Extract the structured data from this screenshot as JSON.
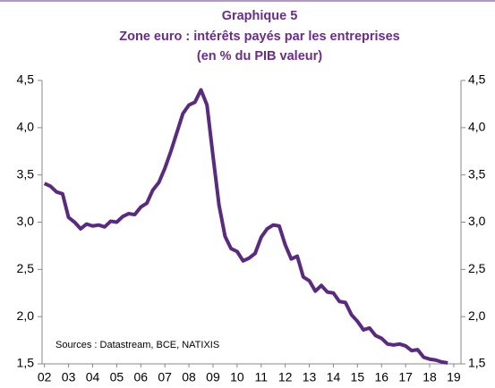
{
  "chart_data": {
    "type": "line",
    "title": "Graphique 5",
    "subtitle": "Zone euro : intérêts payés par les entreprises",
    "subtitle2": "(en % du PIB valeur)",
    "annotation": "Sources : Datastream,  BCE, NATIXIS",
    "x": [
      2002,
      2002.25,
      2002.5,
      2002.75,
      2003,
      2003.25,
      2003.5,
      2003.75,
      2004,
      2004.25,
      2004.5,
      2004.75,
      2005,
      2005.25,
      2005.5,
      2005.75,
      2006,
      2006.25,
      2006.5,
      2006.75,
      2007,
      2007.25,
      2007.5,
      2007.75,
      2008,
      2008.25,
      2008.5,
      2008.75,
      2009,
      2009.25,
      2009.5,
      2009.75,
      2010,
      2010.25,
      2010.5,
      2010.75,
      2011,
      2011.25,
      2011.5,
      2011.75,
      2012,
      2012.25,
      2012.5,
      2012.75,
      2013,
      2013.25,
      2013.5,
      2013.75,
      2014,
      2014.25,
      2014.5,
      2014.75,
      2015,
      2015.25,
      2015.5,
      2015.75,
      2016,
      2016.25,
      2016.5,
      2016.75,
      2017,
      2017.25,
      2017.5,
      2017.75,
      2018,
      2018.25,
      2018.5,
      2018.75
    ],
    "series": [
      {
        "color": "#5a2a82",
        "values": [
          3.41,
          3.38,
          3.32,
          3.3,
          3.05,
          3.0,
          2.93,
          2.98,
          2.96,
          2.97,
          2.95,
          3.01,
          3.0,
          3.06,
          3.09,
          3.08,
          3.16,
          3.2,
          3.34,
          3.42,
          3.57,
          3.75,
          3.95,
          4.15,
          4.24,
          4.27,
          4.4,
          4.24,
          3.7,
          3.18,
          2.85,
          2.72,
          2.69,
          2.59,
          2.62,
          2.67,
          2.84,
          2.93,
          2.97,
          2.96,
          2.76,
          2.61,
          2.64,
          2.42,
          2.38,
          2.27,
          2.33,
          2.26,
          2.25,
          2.16,
          2.15,
          2.02,
          1.95,
          1.86,
          1.88,
          1.8,
          1.77,
          1.71,
          1.7,
          1.71,
          1.69,
          1.64,
          1.65,
          1.57,
          1.55,
          1.54,
          1.52,
          1.51
        ]
      }
    ],
    "xlim": [
      2001.9,
      2019.3
    ],
    "xticks": [
      {
        "value": 2002,
        "label": "02"
      },
      {
        "value": 2003,
        "label": "03"
      },
      {
        "value": 2004,
        "label": "04"
      },
      {
        "value": 2005,
        "label": "05"
      },
      {
        "value": 2006,
        "label": "06"
      },
      {
        "value": 2007,
        "label": "07"
      },
      {
        "value": 2008,
        "label": "08"
      },
      {
        "value": 2009,
        "label": "09"
      },
      {
        "value": 2010,
        "label": "10"
      },
      {
        "value": 2011,
        "label": "11"
      },
      {
        "value": 2012,
        "label": "12"
      },
      {
        "value": 2013,
        "label": "13"
      },
      {
        "value": 2014,
        "label": "14"
      },
      {
        "value": 2015,
        "label": "15"
      },
      {
        "value": 2016,
        "label": "16"
      },
      {
        "value": 2017,
        "label": "17"
      },
      {
        "value": 2018,
        "label": "18"
      },
      {
        "value": 2019,
        "label": "19"
      }
    ],
    "ylim": [
      1.5,
      4.5
    ],
    "yticks": [
      {
        "value": 1.5,
        "label": "1,5"
      },
      {
        "value": 2,
        "label": "2,0"
      },
      {
        "value": 2.5,
        "label": "2,5"
      },
      {
        "value": 3,
        "label": "3,0"
      },
      {
        "value": 3.5,
        "label": "3,5"
      },
      {
        "value": 4,
        "label": "4,0"
      },
      {
        "value": 4.5,
        "label": "4,5"
      }
    ],
    "y2lim": [
      1.5,
      4.5
    ],
    "y2ticks": [
      {
        "value": 1.5,
        "label": "1,5"
      },
      {
        "value": 2,
        "label": "2,0"
      },
      {
        "value": 2.5,
        "label": "2,5"
      },
      {
        "value": 3,
        "label": "3,0"
      },
      {
        "value": 3.5,
        "label": "3,5"
      },
      {
        "value": 4,
        "label": "4,0"
      },
      {
        "value": 4.5,
        "label": "4,5"
      }
    ]
  }
}
